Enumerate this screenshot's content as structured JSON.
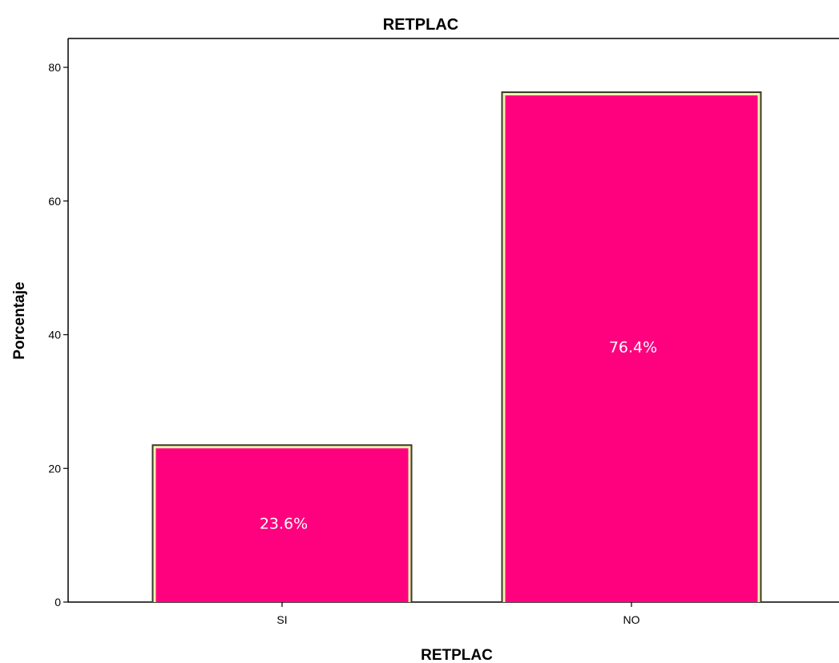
{
  "chart_data": {
    "type": "bar",
    "title": "RETPLAC",
    "xlabel": "RETPLAC",
    "ylabel": "Porcentaje",
    "categories": [
      "SI",
      "NO"
    ],
    "values": [
      23.6,
      76.4
    ],
    "data_labels": [
      "23.6%",
      "76.4%"
    ],
    "ylim": [
      0,
      84
    ],
    "yticks": [
      0,
      20,
      40,
      60,
      80
    ],
    "grid": false,
    "bar_color": "#FF007F",
    "bar_border_outer": "#3a3a2a",
    "bar_border_inner": "#F5F0B0",
    "data_label_color": "#FFFFFF"
  }
}
